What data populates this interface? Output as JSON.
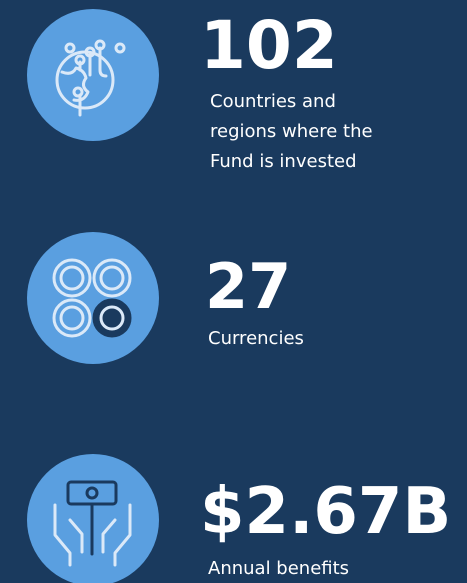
{
  "items": [
    {
      "figure": "102",
      "label": [
        "Countries and",
        "regions where the",
        "Fund is invested"
      ]
    },
    {
      "figure": "27",
      "label": [
        "Currencies"
      ]
    },
    {
      "figure": "$2.67B",
      "label": [
        "Annual benefits"
      ]
    }
  ]
}
